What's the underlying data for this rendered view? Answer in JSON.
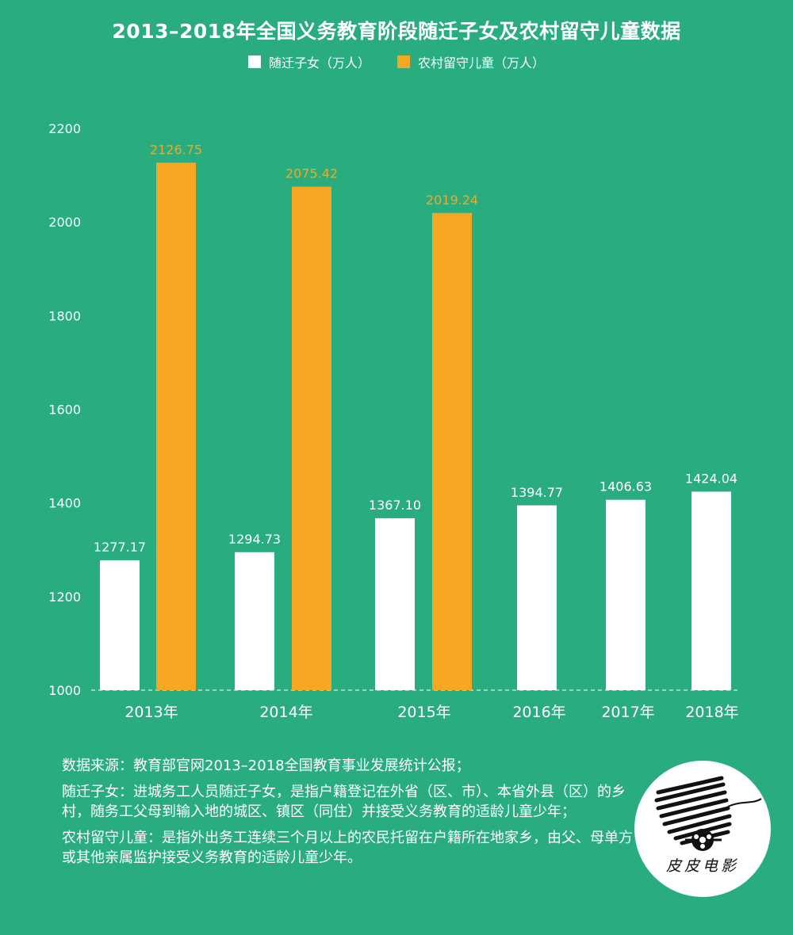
{
  "chart_data": {
    "type": "bar",
    "title": "2013–2018年全国义务教育阶段随迁子女及农村留守儿童数据",
    "categories": [
      "2013年",
      "2014年",
      "2015年",
      "2016年",
      "2017年",
      "2018年"
    ],
    "series": [
      {
        "name": "随迁子女（万人）",
        "color": "#FFFFFF",
        "values": [
          1277.17,
          1294.73,
          1367.1,
          1394.77,
          1406.63,
          1424.04
        ],
        "labels": [
          "1277.17",
          "1294.73",
          "1367.10",
          "1394.77",
          "1406.63",
          "1424.04"
        ]
      },
      {
        "name": "农村留守儿童（万人）",
        "color": "#F5A623",
        "values": [
          2126.75,
          2075.42,
          2019.24,
          null,
          null,
          null
        ],
        "labels": [
          "2126.75",
          "2075.42",
          "2019.24",
          null,
          null,
          null
        ]
      }
    ],
    "yticks": [
      "1000",
      "1200",
      "1400",
      "1600",
      "1800",
      "2000",
      "2200"
    ],
    "ylim": [
      1000,
      2200
    ],
    "grid": false,
    "legend_position": "top-center"
  },
  "notes": [
    "数据来源：教育部官网2013–2018全国教育事业发展统计公报；",
    "随迁子女：进城务工人员随迁子女，是指户籍登记在外省（区、市）、本省外县（区）的乡村，随务工父母到输入地的城区、镇区（同住）并接受义务教育的适龄儿童少年；",
    "农村留守儿童：是指外出务工连续三个月以上的农民托留在户籍所在地家乡，由父、母单方或其他亲属监护接受义务教育的适龄儿童少年。"
  ],
  "logo": {
    "text": "皮皮电影",
    "icon": "film-reel-logo-icon"
  }
}
